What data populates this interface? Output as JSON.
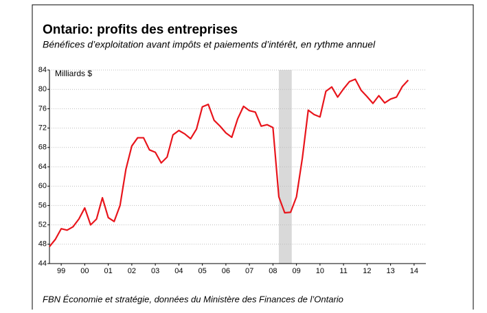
{
  "chart_data": {
    "type": "line",
    "title": "Ontario: profits des entreprises",
    "subtitle": "Bénéfices d’exploitation avant impôts et paiements d’intérêt, en rythme annuel",
    "ylabel": "Milliards $",
    "source": "FBN Économie et stratégie, données du Ministère des Finances de l’Ontario",
    "x": [
      1999,
      1999.25,
      1999.5,
      1999.75,
      2000,
      2000.25,
      2000.5,
      2000.75,
      2001,
      2001.25,
      2001.5,
      2001.75,
      2002,
      2002.25,
      2002.5,
      2002.75,
      2003,
      2003.25,
      2003.5,
      2003.75,
      2004,
      2004.25,
      2004.5,
      2004.75,
      2005,
      2005.25,
      2005.5,
      2005.75,
      2006,
      2006.25,
      2006.5,
      2006.75,
      2007,
      2007.25,
      2007.5,
      2007.75,
      2008,
      2008.25,
      2008.5,
      2008.75,
      2009,
      2009.25,
      2009.5,
      2009.75,
      2010,
      2010.25,
      2010.5,
      2010.75,
      2011,
      2011.25,
      2011.5,
      2011.75,
      2012,
      2012.25,
      2012.5,
      2012.75,
      2013,
      2013.25,
      2013.5,
      2013.75,
      2014,
      2014.25
    ],
    "series": [
      {
        "color": "#e8141b",
        "values": [
          47.5,
          49,
          51.2,
          50.9,
          51.6,
          53.2,
          55.5,
          52,
          53.2,
          57.6,
          53.5,
          52.7,
          56,
          63.5,
          68.3,
          70,
          70,
          67.5,
          67,
          64.8,
          66,
          70.6,
          71.5,
          70.8,
          69.8,
          71.8,
          76.4,
          76.9,
          73.6,
          72.4,
          71,
          70.1,
          73.9,
          76.5,
          75.6,
          75.3,
          72.4,
          72.7,
          72.1,
          57.8,
          54.5,
          54.6,
          57.8,
          65.8,
          75.7,
          74.8,
          74.3,
          79.6,
          80.5,
          78.4,
          80.1,
          81.6,
          82.1,
          79.8,
          78.5,
          77.1,
          78.7,
          77.2,
          78,
          78.4,
          80.6,
          81.9
        ]
      }
    ],
    "shaded": [
      2008.75,
      2009.3
    ],
    "shade_color": "#d9d9d9",
    "xlim": [
      1999,
      2015
    ],
    "xticks": [
      {
        "value": 1999.5,
        "label": "99"
      },
      {
        "value": 2000.5,
        "label": "00"
      },
      {
        "value": 2001.5,
        "label": "01"
      },
      {
        "value": 2002.5,
        "label": "02"
      },
      {
        "value": 2003.5,
        "label": "03"
      },
      {
        "value": 2004.5,
        "label": "04"
      },
      {
        "value": 2005.5,
        "label": "05"
      },
      {
        "value": 2006.5,
        "label": "06"
      },
      {
        "value": 2007.5,
        "label": "07"
      },
      {
        "value": 2008.5,
        "label": "08"
      },
      {
        "value": 2009.5,
        "label": "09"
      },
      {
        "value": 2010.5,
        "label": "10"
      },
      {
        "value": 2011.5,
        "label": "11"
      },
      {
        "value": 2012.5,
        "label": "12"
      },
      {
        "value": 2013.5,
        "label": "13"
      },
      {
        "value": 2014.5,
        "label": "14"
      }
    ],
    "ylim": [
      44,
      84
    ],
    "yticks": [
      44,
      48,
      52,
      56,
      60,
      64,
      68,
      72,
      76,
      80,
      84
    ],
    "grid": true
  }
}
